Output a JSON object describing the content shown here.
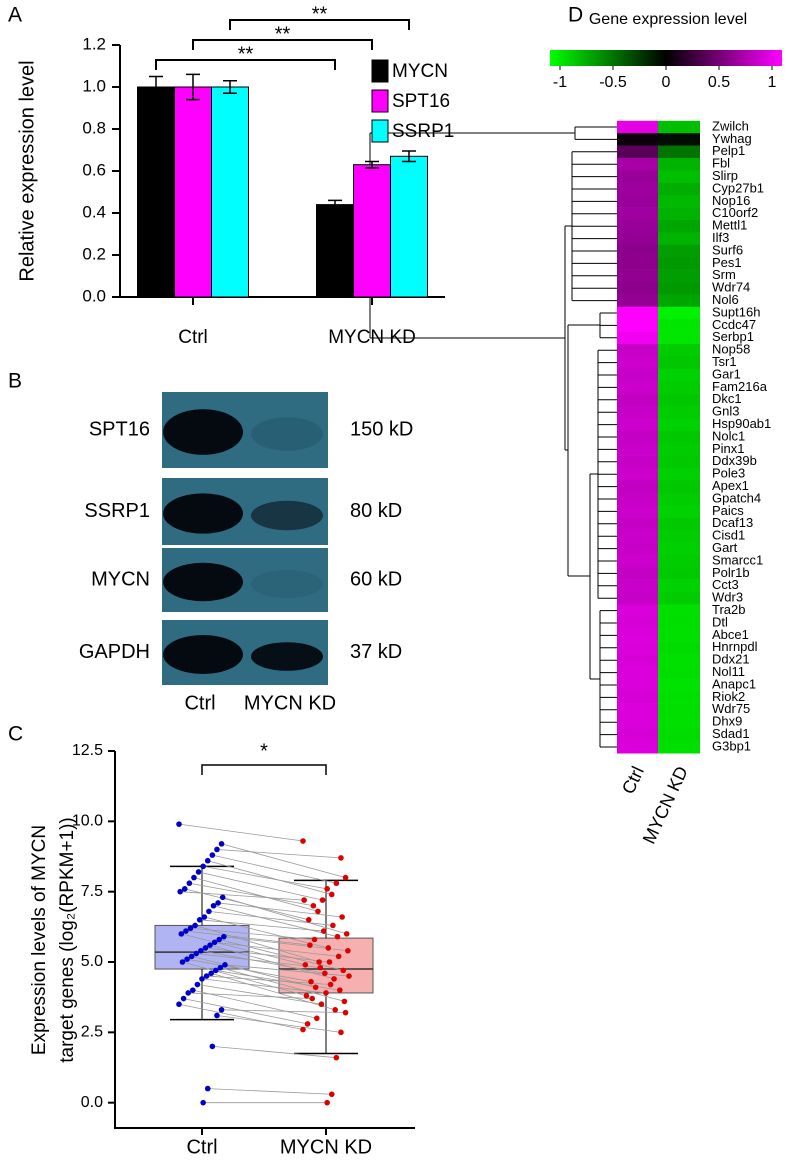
{
  "chart_data": [
    {
      "panel": "A",
      "type": "bar",
      "ylabel": "Relative expression level",
      "categories": [
        "Ctrl",
        "MYCN KD"
      ],
      "series": [
        {
          "name": "MYCN",
          "color": "#000000",
          "values": [
            1.0,
            0.44
          ],
          "errors": [
            0.05,
            0.02
          ],
          "significance": "**"
        },
        {
          "name": "SPT16",
          "color": "#ff00ff",
          "values": [
            1.0,
            0.63
          ],
          "errors": [
            0.06,
            0.015
          ],
          "significance": "**"
        },
        {
          "name": "SSRP1",
          "color": "#00ffff",
          "values": [
            1.0,
            0.67
          ],
          "errors": [
            0.03,
            0.025
          ],
          "significance": "**"
        }
      ],
      "ylim": [
        0,
        1.2
      ],
      "yticks": [
        {
          "value": 0,
          "label": "0.0"
        },
        0.2,
        0.4,
        0.6,
        0.8,
        {
          "value": 1,
          "label": "1.0"
        },
        1.2
      ]
    },
    {
      "panel": "B",
      "type": "blot",
      "proteins": [
        "SPT16",
        "SSRP1",
        "MYCN",
        "GAPDH"
      ],
      "sizes": [
        "150 kD",
        "80 kD",
        "60 kD",
        "37 kD"
      ],
      "lanes": [
        "Ctrl",
        "MYCN KD"
      ]
    },
    {
      "panel": "C",
      "type": "box",
      "ylabel": [
        "Expression levels of MYCN",
        "target genes (log₂(RPKM+1))"
      ],
      "categories": [
        "Ctrl",
        "MYCN KD"
      ],
      "colors": [
        "#0000cc",
        "#dd0000"
      ],
      "box_colors": [
        "#b0b4f2",
        "#f7b0b0"
      ],
      "boxes": [
        {
          "whislo": 2.95,
          "q1": 4.75,
          "med": 5.35,
          "q3": 6.3,
          "whishi": 8.4
        },
        {
          "whislo": 1.75,
          "q1": 3.9,
          "med": 4.75,
          "q3": 5.85,
          "whishi": 7.9
        }
      ],
      "points": [
        [
          9.9,
          9.2,
          9.0,
          8.8,
          8.6,
          8.4,
          8.2,
          8.0,
          7.8,
          7.6,
          7.5,
          7.3,
          7.1,
          7.0,
          6.8,
          6.6,
          6.5,
          6.3,
          6.2,
          6.1,
          6.0,
          5.9,
          5.8,
          5.7,
          5.6,
          5.5,
          5.4,
          5.3,
          5.2,
          5.1,
          5.0,
          4.9,
          4.8,
          4.7,
          4.6,
          4.5,
          4.4,
          4.2,
          4.0,
          3.9,
          3.7,
          3.5,
          3.3,
          3.1,
          2.0,
          0.5,
          0.0
        ],
        [
          9.3,
          8.0,
          8.7,
          7.8,
          7.4,
          7.6,
          7.2,
          6.8,
          7.0,
          6.5,
          7.2,
          6.0,
          6.6,
          5.9,
          6.3,
          5.5,
          6.1,
          5.0,
          5.8,
          5.6,
          4.9,
          5.4,
          4.7,
          5.2,
          4.4,
          5.0,
          4.6,
          4.8,
          4.1,
          4.3,
          3.8,
          4.5,
          3.6,
          4.0,
          3.3,
          4.2,
          3.9,
          3.5,
          3.0,
          3.7,
          2.8,
          2.6,
          3.2,
          2.5,
          1.6,
          0.3,
          0.0
        ]
      ],
      "significance": "*",
      "ylim": [
        -0.9,
        12.5
      ],
      "yticks": [
        {
          "value": 0,
          "label": "0.0"
        },
        2.5,
        {
          "value": 5,
          "label": "5.0"
        },
        7.5,
        {
          "value": 10,
          "label": "10.0"
        },
        12.5
      ]
    },
    {
      "panel": "D",
      "type": "heatmap",
      "title": "Gene expression level",
      "columns": [
        "Ctrl",
        "MYCN KD"
      ],
      "rows": [
        "Zwilch",
        "Ywhag",
        "Pelp1",
        "Fbl",
        "Slirp",
        "Cyp27b1",
        "Nop16",
        "C10orf2",
        "Mettl1",
        "Ilf3",
        "Surf6",
        "Pes1",
        "Srm",
        "Wdr74",
        "Nol6",
        "Supt16h",
        "Ccdc47",
        "Serbp1",
        "Nop58",
        "Tsr1",
        "Gar1",
        "Fam216a",
        "Dkc1",
        "Gnl3",
        "Hsp90ab1",
        "Nolc1",
        "Pinx1",
        "Ddx39b",
        "Pole3",
        "Apex1",
        "Gpatch4",
        "Paics",
        "Dcaf13",
        "Cisd1",
        "Gart",
        "Smarcc1",
        "Polr1b",
        "Cct3",
        "Wdr3",
        "Tra2b",
        "Dtl",
        "Abce1",
        "Hnrnpdl",
        "Ddx21",
        "Nol11",
        "Anapc1",
        "Riok2",
        "Wdr75",
        "Dhx9",
        "Sdad1",
        "G3bp1"
      ],
      "values": [
        [
          0.9,
          -0.75
        ],
        [
          0.05,
          -0.05
        ],
        [
          0.35,
          -0.45
        ],
        [
          0.65,
          -0.7
        ],
        [
          0.6,
          -0.75
        ],
        [
          0.62,
          -0.68
        ],
        [
          0.6,
          -0.72
        ],
        [
          0.63,
          -0.7
        ],
        [
          0.6,
          -0.65
        ],
        [
          0.58,
          -0.7
        ],
        [
          0.55,
          -0.62
        ],
        [
          0.55,
          -0.6
        ],
        [
          0.57,
          -0.62
        ],
        [
          0.55,
          -0.6
        ],
        [
          0.58,
          -0.65
        ],
        [
          1,
          -0.95
        ],
        [
          1,
          -0.9
        ],
        [
          0.95,
          -0.9
        ],
        [
          0.78,
          -0.8
        ],
        [
          0.8,
          -0.78
        ],
        [
          0.78,
          -0.82
        ],
        [
          0.8,
          -0.8
        ],
        [
          0.76,
          -0.78
        ],
        [
          0.78,
          -0.8
        ],
        [
          0.8,
          -0.82
        ],
        [
          0.77,
          -0.78
        ],
        [
          0.79,
          -0.8
        ],
        [
          0.78,
          -0.79
        ],
        [
          0.8,
          -0.81
        ],
        [
          0.76,
          -0.78
        ],
        [
          0.78,
          -0.8
        ],
        [
          0.8,
          -0.82
        ],
        [
          0.77,
          -0.79
        ],
        [
          0.79,
          -0.8
        ],
        [
          0.78,
          -0.81
        ],
        [
          0.8,
          -0.8
        ],
        [
          0.77,
          -0.79
        ],
        [
          0.79,
          -0.82
        ],
        [
          0.78,
          -0.8
        ],
        [
          0.85,
          -0.88
        ],
        [
          0.84,
          -0.87
        ],
        [
          0.86,
          -0.88
        ],
        [
          0.85,
          -0.86
        ],
        [
          0.84,
          -0.88
        ],
        [
          0.86,
          -0.87
        ],
        [
          0.85,
          -0.89
        ],
        [
          0.84,
          -0.88
        ],
        [
          0.86,
          -0.87
        ],
        [
          0.85,
          -0.88
        ],
        [
          0.84,
          -0.86
        ],
        [
          0.86,
          -0.88
        ]
      ],
      "colormap": [
        "#00ff00",
        "#000000",
        "#ff00ff"
      ],
      "clim": [
        -1,
        1
      ],
      "cticks": [
        -1,
        -0.5,
        0,
        0.5,
        1
      ]
    }
  ]
}
